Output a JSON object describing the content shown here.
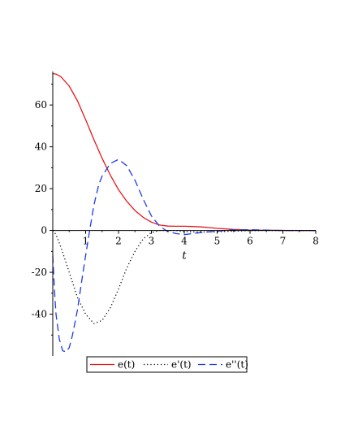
{
  "chart_data": {
    "type": "line",
    "xlabel": "t",
    "ylabel": "",
    "xlim": [
      0,
      8
    ],
    "ylim": [
      -60,
      76
    ],
    "grid": false,
    "legend_position": "bottom",
    "x_ticks": [
      "1",
      "2",
      "3",
      "4",
      "5",
      "6",
      "7",
      "8"
    ],
    "x_tick_values": [
      1,
      2,
      3,
      4,
      5,
      6,
      7,
      8
    ],
    "y_ticks": [
      "60",
      "40",
      "20",
      "0",
      "-20",
      "-40"
    ],
    "y_tick_values": [
      60,
      40,
      20,
      0,
      -20,
      -40
    ],
    "series": [
      {
        "name": "e(t)",
        "color": "#e31a1c",
        "dash": "solid",
        "x": [
          0,
          0.1,
          0.25,
          0.5,
          0.75,
          1.0,
          1.25,
          1.5,
          1.75,
          2.0,
          2.25,
          2.5,
          2.75,
          3.0,
          3.25,
          3.5,
          3.75,
          4.0,
          4.25,
          4.5,
          4.75,
          5.0,
          5.5,
          6.0,
          6.5,
          7.0,
          7.5,
          8.0
        ],
        "y": [
          75,
          74.8,
          73.5,
          69,
          62,
          53,
          43.5,
          34.5,
          26.5,
          19.5,
          14,
          9.5,
          6.3,
          4.0,
          2.6,
          2.1,
          2.0,
          2.0,
          1.9,
          1.7,
          1.4,
          1.0,
          0.5,
          0.2,
          0.1,
          0.05,
          0,
          0
        ]
      },
      {
        "name": "e'(t)",
        "color": "#000000",
        "dash": "dotted",
        "x": [
          0,
          0.1,
          0.25,
          0.5,
          0.75,
          1.0,
          1.25,
          1.5,
          1.75,
          2.0,
          2.25,
          2.5,
          2.75,
          3.0,
          3.25,
          3.5,
          3.75,
          4.0,
          4.5,
          5.0,
          5.5,
          6.0,
          6.5,
          7.0,
          8.0
        ],
        "y": [
          0,
          -2,
          -8,
          -20,
          -32,
          -40,
          -44.5,
          -43,
          -37,
          -28,
          -18,
          -10,
          -4,
          -1,
          0,
          0,
          0,
          -0.5,
          -0.8,
          -0.6,
          -0.3,
          -0.1,
          0,
          0,
          0
        ]
      },
      {
        "name": "e''(t)",
        "color": "#1f3ce6",
        "dash": "dashed",
        "x": [
          0,
          0.05,
          0.1,
          0.2,
          0.3,
          0.4,
          0.5,
          0.6,
          0.75,
          0.9,
          1.0,
          1.1,
          1.25,
          1.4,
          1.5,
          1.75,
          2.0,
          2.25,
          2.5,
          2.75,
          3.0,
          3.25,
          3.5,
          3.75,
          4.0,
          4.25,
          4.5,
          5.0,
          5.5,
          6.0,
          6.5,
          7.0,
          8.0
        ],
        "y": [
          -12,
          -28,
          -40,
          -52,
          -57.5,
          -58,
          -56,
          -50,
          -38,
          -22,
          -12,
          -2,
          12,
          22,
          26,
          32,
          34,
          31,
          24,
          15,
          7,
          2,
          -0.5,
          -1.5,
          -2,
          -1.5,
          -1,
          -0.3,
          0.3,
          0.4,
          0.2,
          0,
          0
        ]
      }
    ]
  }
}
